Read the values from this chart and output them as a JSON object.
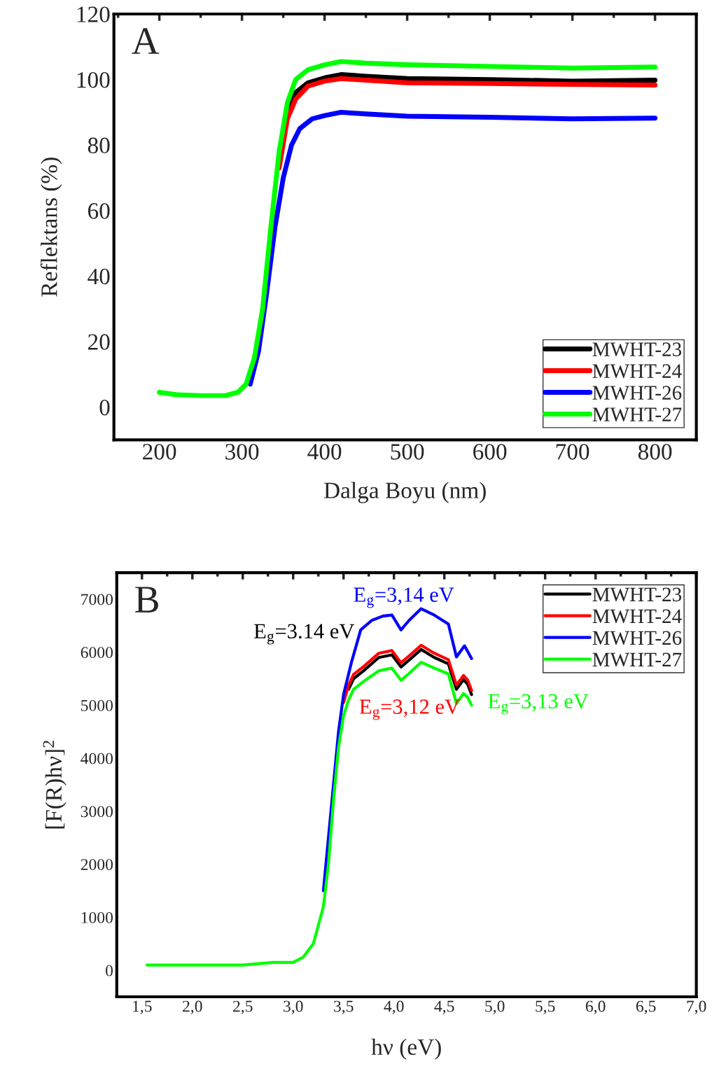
{
  "chart_data": [
    {
      "type": "line",
      "title": "A",
      "xlabel": "Dalga Boyu (nm)",
      "ylabel": "Reflektans (%)",
      "xlim": [
        145,
        850
      ],
      "ylim": [
        -10,
        120
      ],
      "xticks": [
        200,
        300,
        400,
        500,
        600,
        700,
        800
      ],
      "yticks": [
        0,
        20,
        40,
        60,
        80,
        100,
        120
      ],
      "legend": "bottom right",
      "series": [
        {
          "name": "MWHT-23",
          "color": "#000000",
          "x": [
            355,
            365,
            380,
            400,
            420,
            450,
            500,
            600,
            700,
            800
          ],
          "values": [
            90,
            96,
            99,
            100.5,
            101.5,
            101,
            100.3,
            100,
            99.5,
            99.8
          ]
        },
        {
          "name": "MWHT-24",
          "color": "#ff0000",
          "x": [
            345,
            355,
            365,
            380,
            400,
            420,
            450,
            500,
            600,
            700,
            800
          ],
          "values": [
            73,
            88,
            94,
            98,
            99.5,
            100.3,
            99.8,
            99,
            98.8,
            98.5,
            98.3
          ]
        },
        {
          "name": "MWHT-26",
          "color": "#0000ff",
          "x": [
            310,
            320,
            330,
            340,
            350,
            360,
            370,
            385,
            400,
            420,
            450,
            500,
            600,
            700,
            800
          ],
          "values": [
            7,
            17,
            35,
            55,
            70,
            80,
            85,
            88,
            89,
            90,
            89.5,
            88.8,
            88.5,
            88,
            88.2
          ]
        },
        {
          "name": "MWHT-27",
          "color": "#00ff00",
          "x": [
            200,
            220,
            250,
            280,
            295,
            305,
            315,
            325,
            335,
            345,
            355,
            365,
            380,
            400,
            420,
            450,
            500,
            600,
            700,
            800
          ],
          "values": [
            4.5,
            3.8,
            3.5,
            3.5,
            4.5,
            7,
            15,
            30,
            55,
            78,
            93,
            100,
            103,
            104.5,
            105.5,
            105,
            104.5,
            104,
            103.5,
            103.8
          ]
        }
      ]
    },
    {
      "type": "line",
      "title": "B",
      "xlabel": "hν (eV)",
      "ylabel": "[F(R)hν]$^{2}$",
      "xlim": [
        1.25,
        7.0
      ],
      "ylim": [
        -500,
        7500
      ],
      "xticks": [
        {
          "value": 1.5,
          "label": "1,5"
        },
        {
          "value": 2.0,
          "label": "2,0"
        },
        {
          "value": 2.5,
          "label": "2,5"
        },
        {
          "value": 3.0,
          "label": "3,0"
        },
        {
          "value": 3.5,
          "label": "3,5"
        },
        {
          "value": 4.0,
          "label": "4,0"
        },
        {
          "value": 4.5,
          "label": "4,5"
        },
        {
          "value": 5.0,
          "label": "5,0"
        },
        {
          "value": 5.5,
          "label": "5,5"
        },
        {
          "value": 6.0,
          "label": "6,0"
        },
        {
          "value": 6.5,
          "label": "6,5"
        },
        {
          "value": 7.0,
          "label": "7,0"
        }
      ],
      "yticks": [
        0,
        1000,
        2000,
        3000,
        4000,
        5000,
        6000,
        7000
      ],
      "legend": "top right",
      "annotations": [
        "E$_{g}$=3.14 eV",
        "E$_{g}$=3,12 eV",
        "E$_{g}$=3,14 eV",
        "E$_{g}$=3,13 eV"
      ],
      "series": [
        {
          "name": "MWHT-23",
          "color": "#000000",
          "x": [
            3.55,
            3.6,
            3.7,
            3.85,
            3.98,
            4.07,
            4.15,
            4.27,
            4.4,
            4.54,
            4.62,
            4.69,
            4.73,
            4.77
          ],
          "values": [
            5300,
            5500,
            5650,
            5900,
            5950,
            5720,
            5850,
            6050,
            5900,
            5780,
            5300,
            5480,
            5400,
            5200
          ]
        },
        {
          "name": "MWHT-24",
          "color": "#ff0000",
          "x": [
            3.5,
            3.55,
            3.6,
            3.7,
            3.85,
            3.98,
            4.07,
            4.15,
            4.27,
            4.4,
            4.54,
            4.62,
            4.69,
            4.73,
            4.77
          ],
          "values": [
            5050,
            5380,
            5580,
            5730,
            5980,
            6030,
            5800,
            5930,
            6130,
            5980,
            5860,
            5380,
            5560,
            5480,
            5280
          ]
        },
        {
          "name": "MWHT-26",
          "color": "#0000ff",
          "x": [
            3.3,
            3.4,
            3.45,
            3.5,
            3.58,
            3.67,
            3.78,
            3.89,
            3.98,
            4.07,
            4.15,
            4.27,
            4.4,
            4.54,
            4.62,
            4.7,
            4.77
          ],
          "values": [
            1500,
            3500,
            4500,
            5200,
            5820,
            6420,
            6600,
            6680,
            6700,
            6420,
            6600,
            6820,
            6700,
            6530,
            5910,
            6120,
            5880
          ]
        },
        {
          "name": "MWHT-27",
          "color": "#00ff00",
          "x": [
            1.55,
            2.0,
            2.5,
            2.8,
            3.0,
            3.1,
            3.2,
            3.3,
            3.35,
            3.4,
            3.45,
            3.5,
            3.55,
            3.6,
            3.7,
            3.85,
            3.98,
            4.07,
            4.15,
            4.27,
            4.4,
            4.54,
            4.62,
            4.69,
            4.73,
            4.77
          ],
          "values": [
            100,
            100,
            100,
            150,
            150,
            250,
            500,
            1200,
            2000,
            3200,
            4200,
            4800,
            5100,
            5300,
            5450,
            5650,
            5700,
            5470,
            5600,
            5810,
            5700,
            5590,
            5030,
            5220,
            5150,
            5000
          ]
        }
      ]
    }
  ]
}
